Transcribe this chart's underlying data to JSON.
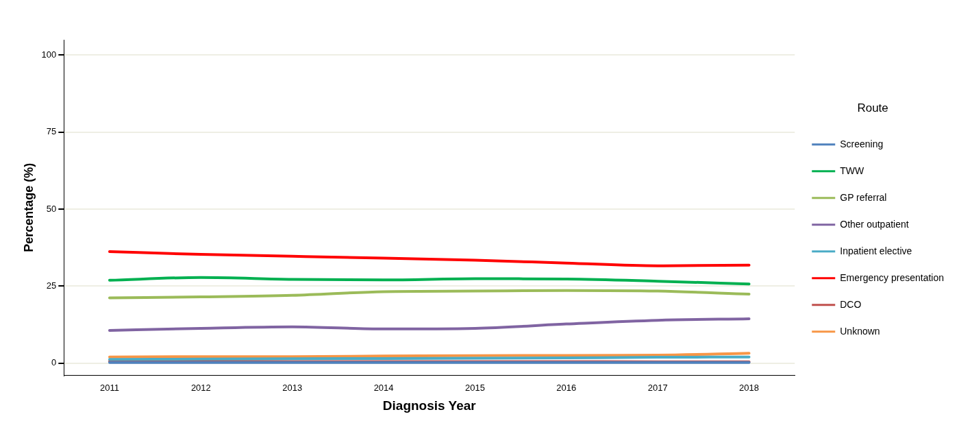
{
  "chart_data": {
    "type": "line",
    "xlabel": "Diagnosis Year",
    "ylabel": "Percentage (%)",
    "legend_title": "Route",
    "categories": [
      "2011",
      "2012",
      "2013",
      "2014",
      "2015",
      "2016",
      "2017",
      "2018"
    ],
    "ylim": [
      -4,
      105
    ],
    "yticks": [
      0,
      25,
      50,
      75,
      100
    ],
    "grid": "y",
    "legend": "right",
    "marker": "none",
    "line_style": "solid",
    "series": [
      {
        "name": "Screening",
        "color": "#4f81bd",
        "values": [
          0.2,
          0.2,
          0.2,
          0.2,
          0.2,
          0.2,
          0.2,
          0.2
        ]
      },
      {
        "name": "TWW",
        "color": "#00b050",
        "values": [
          26.9,
          27.8,
          27.2,
          27.0,
          27.4,
          27.3,
          26.6,
          25.7
        ]
      },
      {
        "name": "GP referral",
        "color": "#9bbb59",
        "values": [
          21.2,
          21.5,
          22.0,
          23.2,
          23.4,
          23.6,
          23.4,
          22.4
        ]
      },
      {
        "name": "Other outpatient",
        "color": "#8064a2",
        "values": [
          10.6,
          11.3,
          11.8,
          11.1,
          11.3,
          12.7,
          13.9,
          14.4
        ]
      },
      {
        "name": "Inpatient elective",
        "color": "#4bacc6",
        "values": [
          1.2,
          1.3,
          1.4,
          1.5,
          1.6,
          1.7,
          1.9,
          2.0
        ]
      },
      {
        "name": "Emergency presentation",
        "color": "#ff0000",
        "values": [
          36.2,
          35.3,
          34.7,
          34.1,
          33.4,
          32.5,
          31.6,
          31.8
        ]
      },
      {
        "name": "DCO",
        "color": "#c0504d",
        "values": [
          0.6,
          0.6,
          0.5,
          0.5,
          0.5,
          0.5,
          0.4,
          0.4
        ]
      },
      {
        "name": "Unknown",
        "color": "#f79646",
        "values": [
          2.0,
          2.1,
          2.1,
          2.3,
          2.4,
          2.5,
          2.6,
          3.2
        ]
      }
    ]
  }
}
